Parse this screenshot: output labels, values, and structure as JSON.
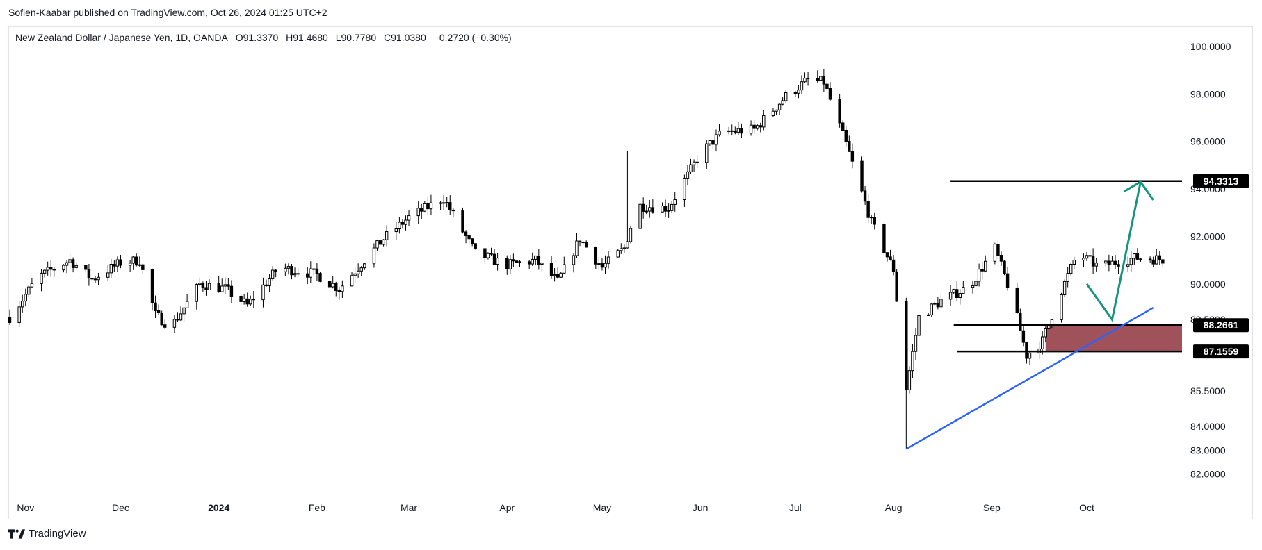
{
  "header": {
    "published": "Sofien-Kaabar published on TradingView.com, Oct 26, 2024 01:25 UTC+2"
  },
  "legend": {
    "symbol": "New Zealand Dollar / Japanese Yen, 1D, OANDA",
    "open": "O91.3370",
    "high": "H91.4680",
    "low": "L90.7780",
    "close": "C91.0380",
    "change": "−0.2720 (−0.30%)"
  },
  "footer": {
    "brand": "TradingView",
    "logo_icon": "tradingview-logo-icon"
  },
  "colors": {
    "up_body": "#ffffff",
    "down_body": "#000000",
    "candle_outline": "#000000",
    "target_arrow": "#14957e",
    "trendline": "#2962ff",
    "zone_fill": "#a0525a",
    "level_line": "#000000",
    "label_bg": "#000000",
    "label_text": "#ffffff"
  },
  "chart_data": {
    "type": "candlestick",
    "symbol": "NZDJPY",
    "timeframe": "1D",
    "ylim": [
      81.5,
      100.5
    ],
    "price_scale": [
      "100.0000",
      "98.0000",
      "96.0000",
      "94.0000",
      "92.0000",
      "90.0000",
      "88.5000",
      "85.5000",
      "84.0000",
      "83.0000",
      "82.0000"
    ],
    "x_ticks": [
      {
        "label": "Nov",
        "date": "2023-11-01",
        "bold": false
      },
      {
        "label": "Dec",
        "date": "2023-12-01",
        "bold": false
      },
      {
        "label": "2024",
        "date": "2024-01-01",
        "bold": true
      },
      {
        "label": "Feb",
        "date": "2024-02-01",
        "bold": false
      },
      {
        "label": "Mar",
        "date": "2024-03-01",
        "bold": false
      },
      {
        "label": "Apr",
        "date": "2024-04-01",
        "bold": false
      },
      {
        "label": "May",
        "date": "2024-05-01",
        "bold": false
      },
      {
        "label": "Jun",
        "date": "2024-06-01",
        "bold": false
      },
      {
        "label": "Jul",
        "date": "2024-07-01",
        "bold": false
      },
      {
        "label": "Aug",
        "date": "2024-08-01",
        "bold": false
      },
      {
        "label": "Sep",
        "date": "2024-09-01",
        "bold": false
      },
      {
        "label": "Oct",
        "date": "2024-10-01",
        "bold": false
      }
    ],
    "price_path": [
      {
        "date": "2023-10-27",
        "price": 88.6
      },
      {
        "date": "2023-11-05",
        "price": 90.3
      },
      {
        "date": "2023-11-15",
        "price": 91.0
      },
      {
        "date": "2023-11-22",
        "price": 90.2
      },
      {
        "date": "2023-12-01",
        "price": 90.9
      },
      {
        "date": "2023-12-07",
        "price": 91.0
      },
      {
        "date": "2023-12-12",
        "price": 88.7
      },
      {
        "date": "2023-12-17",
        "price": 88.2
      },
      {
        "date": "2023-12-26",
        "price": 90.0
      },
      {
        "date": "2024-01-03",
        "price": 89.8
      },
      {
        "date": "2024-01-10",
        "price": 89.1
      },
      {
        "date": "2024-01-20",
        "price": 90.7
      },
      {
        "date": "2024-02-01",
        "price": 90.4
      },
      {
        "date": "2024-02-08",
        "price": 89.8
      },
      {
        "date": "2024-02-22",
        "price": 91.9
      },
      {
        "date": "2024-03-01",
        "price": 92.8
      },
      {
        "date": "2024-03-12",
        "price": 93.6
      },
      {
        "date": "2024-03-22",
        "price": 91.3
      },
      {
        "date": "2024-04-01",
        "price": 90.8
      },
      {
        "date": "2024-04-10",
        "price": 91.0
      },
      {
        "date": "2024-04-17",
        "price": 90.1
      },
      {
        "date": "2024-04-24",
        "price": 91.9
      },
      {
        "date": "2024-05-01",
        "price": 90.7
      },
      {
        "date": "2024-05-08",
        "price": 91.5
      },
      {
        "date": "2024-05-12",
        "price": 93.3
      },
      {
        "date": "2024-05-22",
        "price": 93.2
      },
      {
        "date": "2024-06-01",
        "price": 95.5
      },
      {
        "date": "2024-06-08",
        "price": 96.4
      },
      {
        "date": "2024-06-18",
        "price": 96.5
      },
      {
        "date": "2024-06-28",
        "price": 97.9
      },
      {
        "date": "2024-07-05",
        "price": 98.6
      },
      {
        "date": "2024-07-10",
        "price": 98.5
      },
      {
        "date": "2024-07-17",
        "price": 95.9
      },
      {
        "date": "2024-07-25",
        "price": 92.6
      },
      {
        "date": "2024-08-01",
        "price": 90.6
      },
      {
        "date": "2024-08-05",
        "price": 85.6
      },
      {
        "date": "2024-08-09",
        "price": 88.6
      },
      {
        "date": "2024-08-16",
        "price": 89.3
      },
      {
        "date": "2024-08-25",
        "price": 89.9
      },
      {
        "date": "2024-09-02",
        "price": 91.5
      },
      {
        "date": "2024-09-07",
        "price": 89.6
      },
      {
        "date": "2024-09-12",
        "price": 87.0
      },
      {
        "date": "2024-09-17",
        "price": 87.6
      },
      {
        "date": "2024-09-22",
        "price": 89.4
      },
      {
        "date": "2024-09-28",
        "price": 91.3
      },
      {
        "date": "2024-10-05",
        "price": 90.7
      },
      {
        "date": "2024-10-12",
        "price": 91.0
      },
      {
        "date": "2024-10-17",
        "price": 91.1
      },
      {
        "date": "2024-10-25",
        "price": 91.04
      }
    ],
    "extremes": [
      {
        "date": "2024-05-09",
        "high": 95.6,
        "label": "spike high"
      },
      {
        "date": "2024-08-05",
        "low": 83.05,
        "label": "August low"
      }
    ],
    "annotations": {
      "horizontal_levels": [
        {
          "label": "94.3313",
          "price": 94.3313,
          "start_date": "2024-08-19",
          "end_date": "2024-10-31"
        },
        {
          "label": "88.2661",
          "price": 88.2661,
          "start_date": "2024-08-20",
          "end_date": "2024-10-31"
        },
        {
          "label": "87.1559",
          "price": 87.1559,
          "start_date": "2024-08-21",
          "end_date": "2024-10-31"
        }
      ],
      "zone": {
        "from_date": "2024-09-18",
        "to_date": "2024-10-31",
        "top": 88.2661,
        "bottom": 87.1559
      },
      "trendline": [
        {
          "date": "2024-08-05",
          "price": 83.05
        },
        {
          "date": "2024-10-22",
          "price": 89.0
        }
      ],
      "projection_arrow": [
        {
          "date": "2024-10-01",
          "price": 90.0
        },
        {
          "date": "2024-10-09",
          "price": 88.5
        },
        {
          "date": "2024-10-18",
          "price": 94.3
        }
      ]
    }
  }
}
